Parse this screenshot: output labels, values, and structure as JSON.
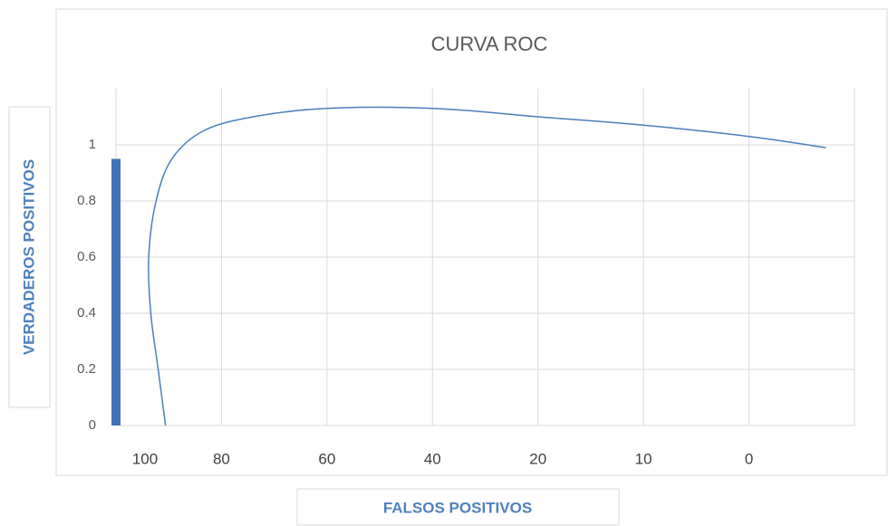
{
  "chart_data": {
    "type": "bar",
    "title": "CURVA ROC",
    "x_label": "FALSOS POSITIVOS",
    "y_label": "VERDADEROS POSITIVOS",
    "categories": [
      "100",
      "80",
      "60",
      "40",
      "20",
      "10",
      "0"
    ],
    "series": [
      {
        "type": "bar",
        "color": "#3f73b5",
        "values": [
          0.95,
          null,
          null,
          null,
          null,
          null,
          null
        ]
      },
      {
        "type": "line",
        "color": "#4a7ebb",
        "x": [
          0.47,
          0.4,
          0.33,
          0.31,
          0.38,
          0.53,
          0.83,
          1.3,
          1.99,
          3.0,
          4.0,
          5.0,
          6.0,
          6.73
        ],
        "values": [
          0,
          0.2,
          0.4,
          0.6,
          0.8,
          0.95,
          1.05,
          1.1,
          1.13,
          1.13,
          1.1,
          1.07,
          1.03,
          0.99
        ]
      }
    ],
    "xlim": [
      0,
      7
    ],
    "ylim": [
      0,
      1.2
    ],
    "yticks": [
      0,
      0.2,
      0.4,
      0.6,
      0.8,
      1
    ],
    "grid": true
  }
}
